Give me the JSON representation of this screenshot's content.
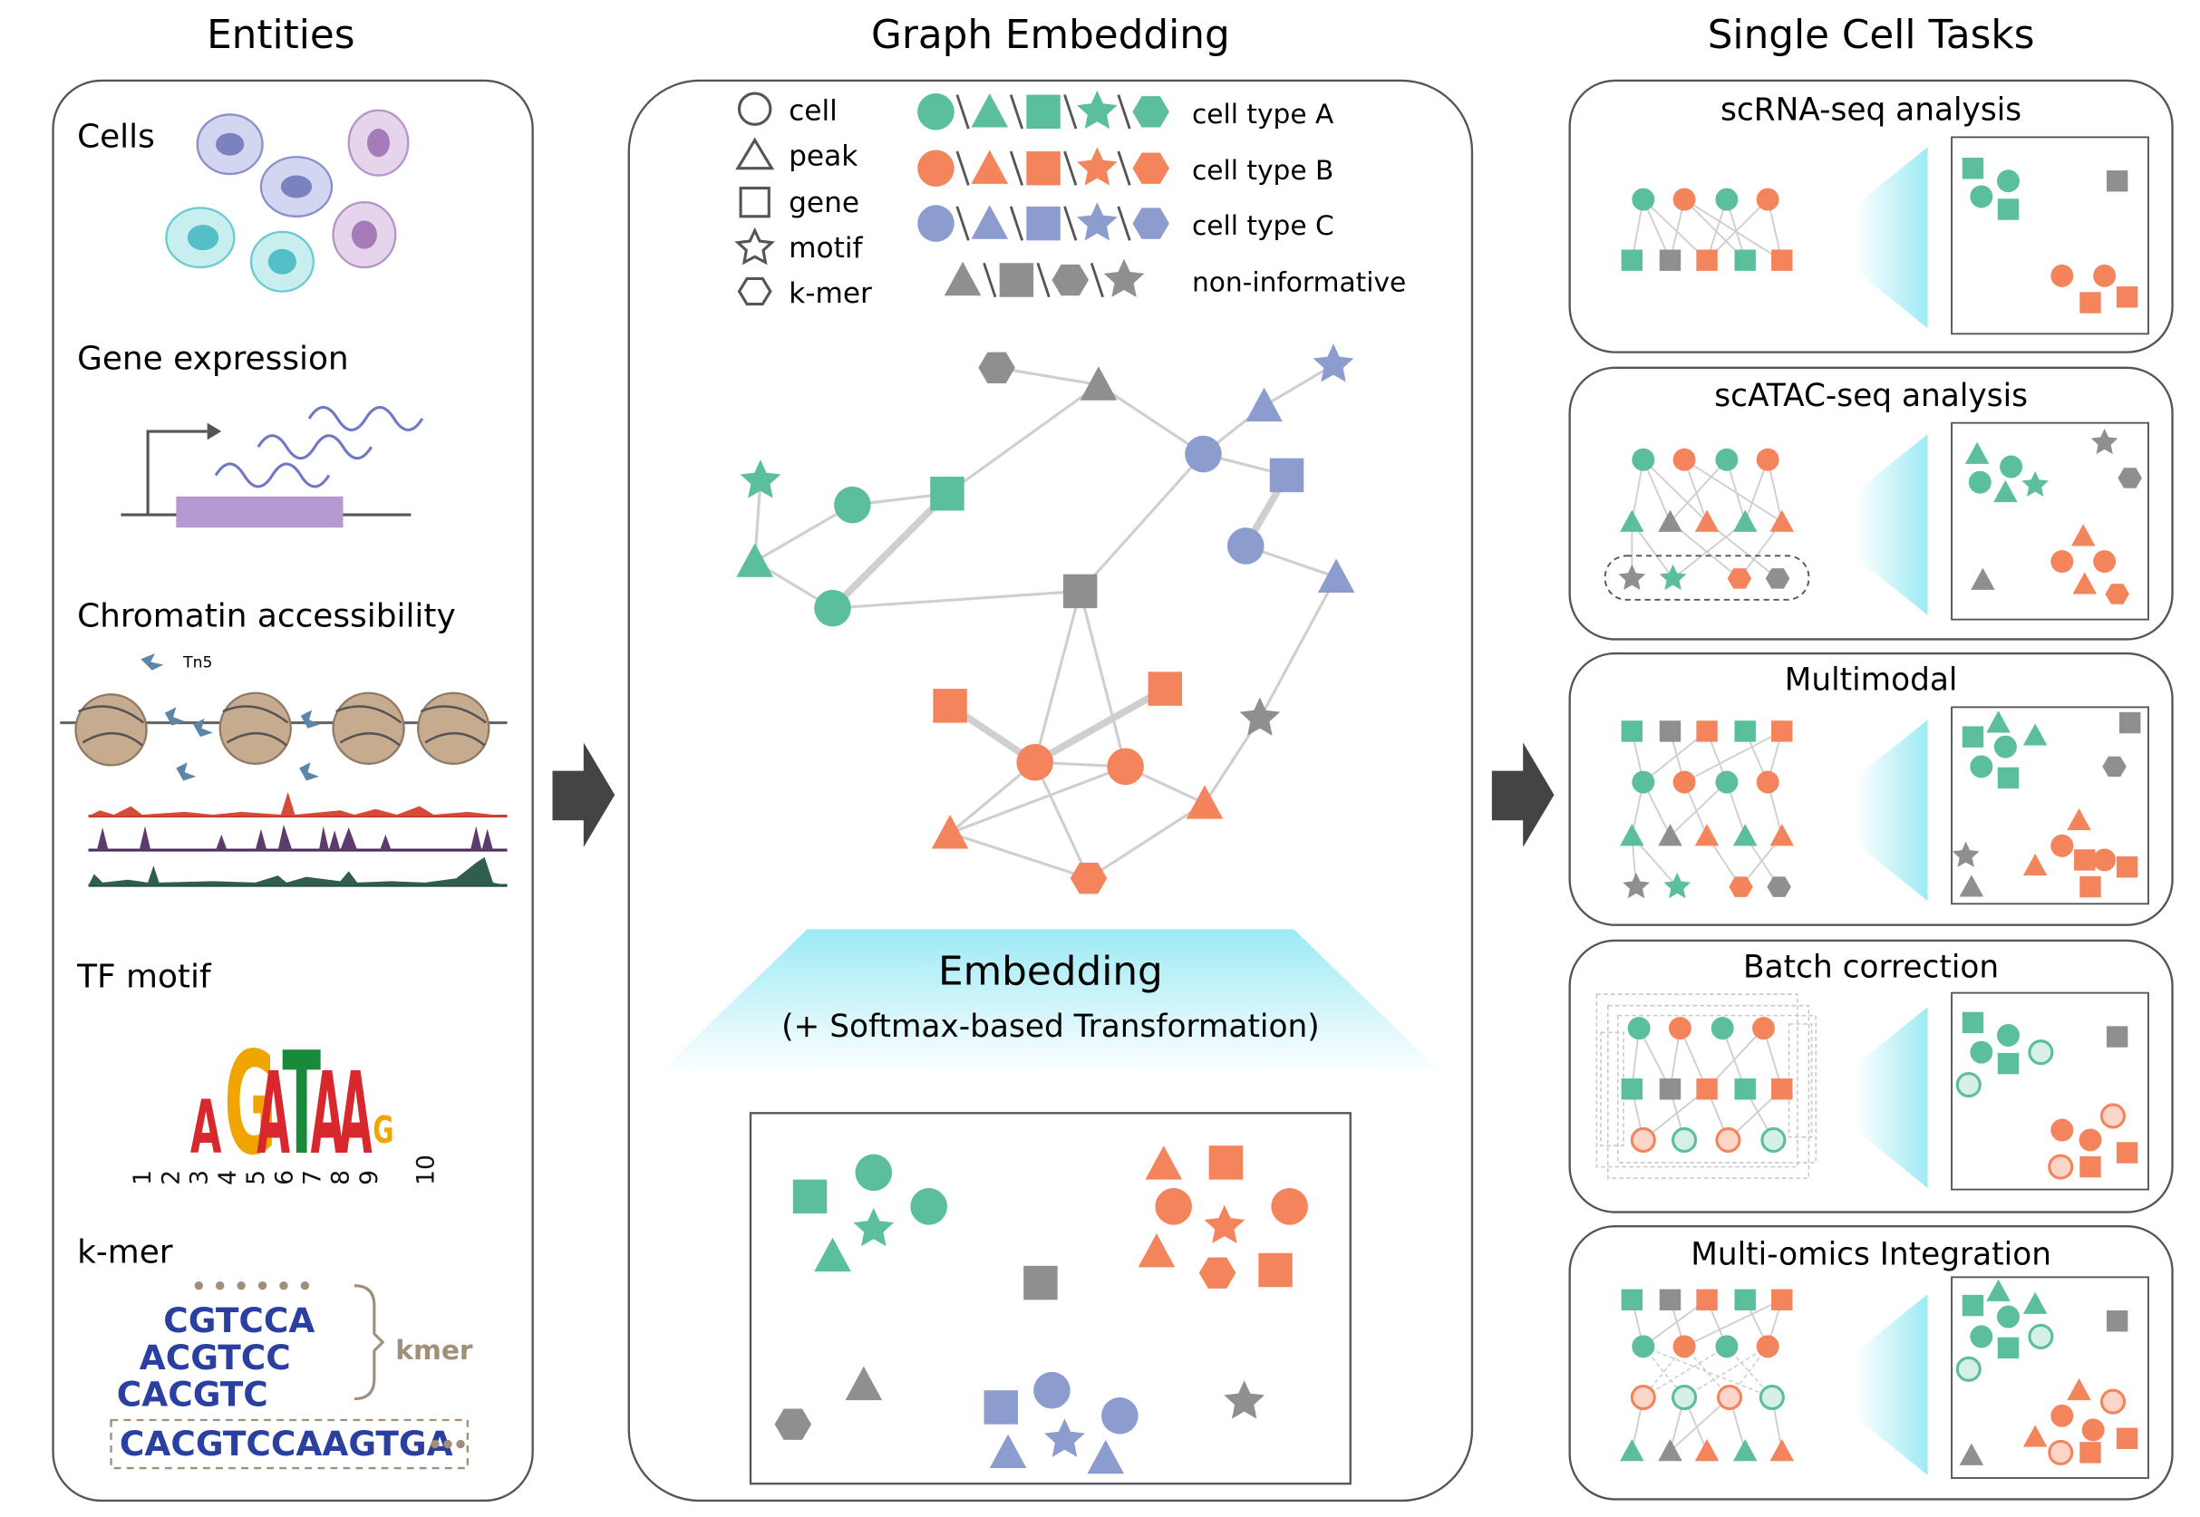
{
  "titles": {
    "entities": "Entities",
    "graph": "Graph Embedding",
    "tasks": "Single Cell Tasks"
  },
  "entities": {
    "cells": "Cells",
    "gene_expression": "Gene expression",
    "chromatin": "Chromatin accessibility",
    "tn5": "Tn5",
    "tf_motif": "TF motif",
    "motif_letters": [
      "A",
      "G",
      "A",
      "T",
      "A",
      "A",
      "G"
    ],
    "motif_positions": [
      "1",
      "2",
      "3",
      "4",
      "5",
      "6",
      "7",
      "8",
      "9",
      "10"
    ],
    "kmer_title": "k-mer",
    "kmer_label": "kmer",
    "kmer_rows": [
      "CGTCCA",
      "ACGTCC",
      "CACGTC"
    ],
    "kmer_sequence": "CACGTCCAAGTGA"
  },
  "legend": {
    "shapes": [
      "cell",
      "peak",
      "gene",
      "motif",
      "k-mer"
    ],
    "colors": [
      "cell type A",
      "cell type B",
      "cell type C",
      "non-informative"
    ]
  },
  "embedding": {
    "title": "Embedding",
    "subtitle": "(+ Softmax-based Transformation)"
  },
  "tasks": [
    "scRNA-seq analysis",
    "scATAC-seq analysis",
    "Multimodal",
    "Batch correction",
    "Multi-omics Integration"
  ],
  "colors": {
    "type_a": "#5bbf9b",
    "type_b": "#f4845c",
    "type_c": "#8c9ccf",
    "noninformative": "#8f8f8f",
    "edge": "#cfcfcf",
    "panel_border": "#555555"
  }
}
